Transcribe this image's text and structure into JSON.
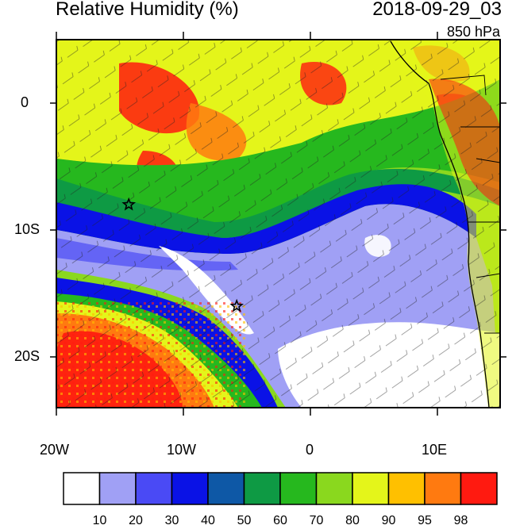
{
  "title_left": "Relative Humidity (%)",
  "title_right": "2018-09-29_03",
  "level": "850 hPa",
  "lon_labels": [
    "20W",
    "10W",
    "0",
    "10E"
  ],
  "lat_labels": [
    "0",
    "10S",
    "20S"
  ],
  "legend": {
    "colors": [
      "#ffffff",
      "#a0a0f5",
      "#4a4af5",
      "#0a12e6",
      "#0e58a6",
      "#0e9a44",
      "#26b81e",
      "#8ad81e",
      "#e4f51a",
      "#ffc000",
      "#ff7a10",
      "#ff1a10"
    ],
    "labels": [
      "10",
      "20",
      "30",
      "40",
      "50",
      "60",
      "70",
      "80",
      "90",
      "95",
      "98"
    ]
  },
  "markers": [
    {
      "name": "star-marker-north",
      "lon": -14.3,
      "lat": -8.0
    },
    {
      "name": "star-marker-south",
      "lon": -5.8,
      "lat": -16.0
    }
  ]
}
